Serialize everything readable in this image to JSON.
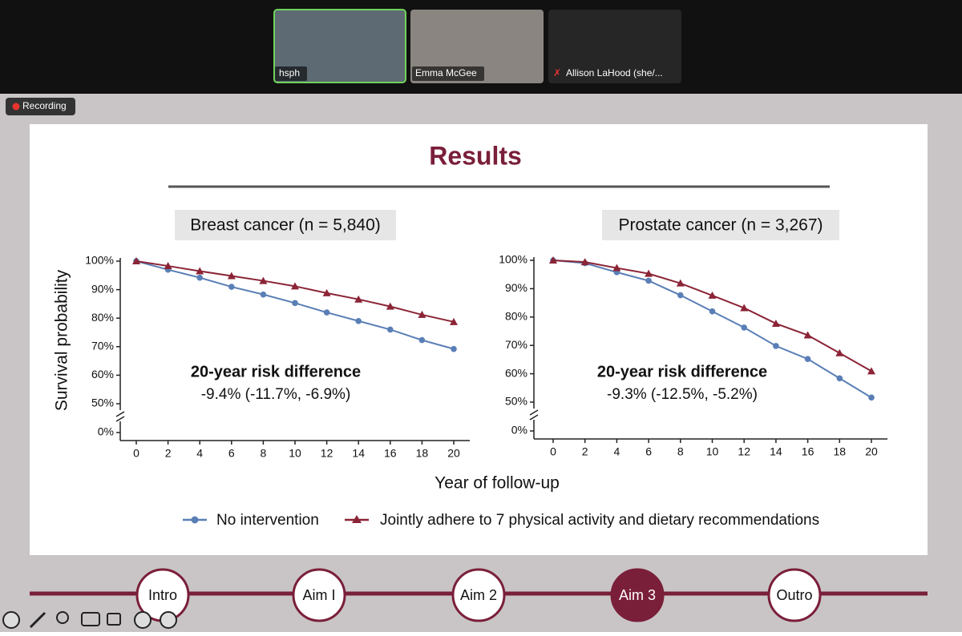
{
  "meeting": {
    "participants": [
      "hsph",
      "Emma McGee",
      "Allison LaHood (she/..."
    ],
    "recording": "Recording"
  },
  "slide": {
    "title": "Results",
    "x_label": "Year of follow-up",
    "nav": [
      "Intro",
      "Aim I",
      "Aim 2",
      "Aim 3",
      "Outro"
    ],
    "nav_active": "Aim 3"
  },
  "chart_data": [
    {
      "type": "line",
      "title": "Breast cancer (n = 5,840)",
      "y_label": "Survival probability",
      "x": [
        0,
        2,
        4,
        6,
        8,
        10,
        12,
        14,
        16,
        18,
        20
      ],
      "xlim": [
        0,
        20
      ],
      "xticks": [
        0,
        2,
        4,
        6,
        8,
        10,
        12,
        14,
        16,
        18,
        20
      ],
      "ylim": [
        0,
        100
      ],
      "yticks": [
        {
          "value": 0,
          "label": "0%"
        },
        {
          "value": 50,
          "label": "50%"
        },
        {
          "value": 60,
          "label": "60%"
        },
        {
          "value": 70,
          "label": "70%"
        },
        {
          "value": 80,
          "label": "80%"
        },
        {
          "value": 90,
          "label": "90%"
        },
        {
          "value": 100,
          "label": "100%"
        }
      ],
      "axis_break": true,
      "annotations": [
        "20-year risk difference",
        "-9.4% (-11.7%, -6.9%)"
      ],
      "series": [
        {
          "name": "No intervention",
          "color": "#5a7fb6",
          "marker": "circle",
          "values": [
            100,
            97,
            94.2,
            91,
            88.3,
            85.3,
            82,
            79,
            76,
            72.3,
            69.2
          ]
        },
        {
          "name": "Jointly adhere to 7 physical activity and dietary recommendations",
          "color": "#8b2436",
          "marker": "triangle",
          "values": [
            100,
            98.3,
            96.5,
            94.8,
            93.1,
            91.2,
            88.8,
            86.6,
            84.1,
            81.2,
            78.7
          ]
        }
      ]
    },
    {
      "type": "line",
      "title": "Prostate cancer (n = 3,267)",
      "x": [
        0,
        2,
        4,
        6,
        8,
        10,
        12,
        14,
        16,
        18,
        20
      ],
      "xlim": [
        0,
        20
      ],
      "xticks": [
        0,
        2,
        4,
        6,
        8,
        10,
        12,
        14,
        16,
        18,
        20
      ],
      "ylim": [
        0,
        100
      ],
      "yticks": [
        {
          "value": 0,
          "label": "0%"
        },
        {
          "value": 50,
          "label": "50%"
        },
        {
          "value": 60,
          "label": "60%"
        },
        {
          "value": 70,
          "label": "70%"
        },
        {
          "value": 80,
          "label": "80%"
        },
        {
          "value": 90,
          "label": "90%"
        },
        {
          "value": 100,
          "label": "100%"
        }
      ],
      "axis_break": true,
      "annotations": [
        "20-year risk difference",
        "-9.3% (-12.5%, -5.2%)"
      ],
      "series": [
        {
          "name": "No intervention",
          "color": "#5a7fb6",
          "marker": "circle",
          "values": [
            100,
            99,
            95.8,
            92.8,
            87.7,
            82,
            76.3,
            69.8,
            65.2,
            58.4,
            51.6
          ]
        },
        {
          "name": "Jointly adhere to 7 physical activity and dietary recommendations",
          "color": "#8b2436",
          "marker": "triangle",
          "values": [
            100,
            99.4,
            97.3,
            95.3,
            91.9,
            87.6,
            83.2,
            77.7,
            73.6,
            67.3,
            60.9
          ]
        }
      ]
    }
  ]
}
